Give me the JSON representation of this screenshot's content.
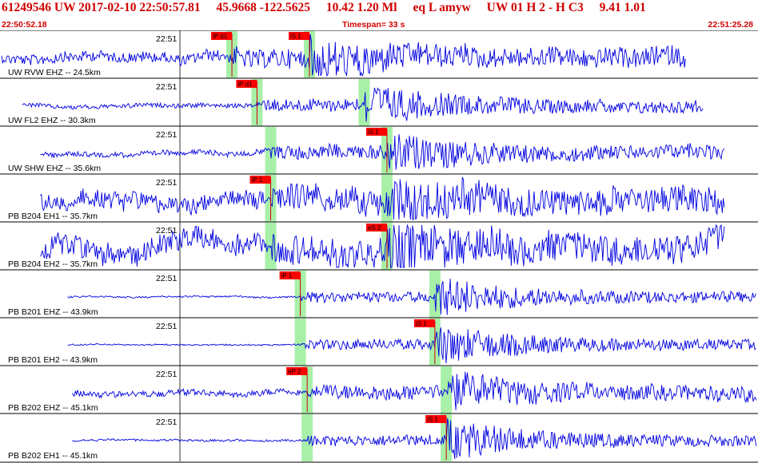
{
  "header": {
    "event_id": "61249546",
    "network": "UW",
    "datetime": "2017-02-10 22:50:57.81",
    "lat": "45.9668",
    "lon": "-122.5625",
    "depth": "10.42",
    "magnitude": "1.20 Ml",
    "event_type": "eq",
    "flags": "L amyw",
    "station_info": "UW 01 H 2 - H C3",
    "value_a": "9.41",
    "value_b": "1.01"
  },
  "timeline": {
    "start_time": "22:50:52.18",
    "timespan": "Timespan=  33 s",
    "end_time": "22:51:25.28"
  },
  "colors": {
    "trace": "#0000e0",
    "pick_flag": "#ff0000",
    "pick_line": "#cc0000",
    "pick_window": "#a8f0a8",
    "header_text": "#d00000"
  },
  "chart_data": {
    "type": "line",
    "x_range_seconds": [
      0,
      33.1
    ],
    "tick_label": "22:51",
    "tick_time_s": 7.82,
    "traces": [
      {
        "label": "UW RVW EHZ -- 24.5km",
        "start_s": 0.0,
        "end_s": 30.0,
        "amp": 0.3,
        "p_time_s": 10.1,
        "s_time_s": 13.5,
        "peak": 1.0,
        "picks": [
          {
            "label": "iP d1",
            "time_s": 10.1
          },
          {
            "label": "iS 1",
            "time_s": 13.5
          }
        ]
      },
      {
        "label": "UW FL2 EHZ -- 30.3km",
        "start_s": 0.9,
        "end_s": 30.8,
        "amp": 0.12,
        "p_time_s": 11.2,
        "s_time_s": 15.9,
        "peak": 0.95,
        "picks": [
          {
            "label": "iP d1",
            "time_s": 11.2
          },
          {
            "label": "",
            "time_s": 15.9
          }
        ]
      },
      {
        "label": "UW SHW EHZ -- 35.6km",
        "start_s": 1.7,
        "end_s": 31.7,
        "amp": 0.15,
        "p_time_s": 11.8,
        "s_time_s": 16.9,
        "peak": 0.95,
        "picks": [
          {
            "label": "",
            "time_s": 11.8
          },
          {
            "label": "iS 1",
            "time_s": 16.9
          }
        ]
      },
      {
        "label": "PB B204 EH1 -- 35.7km",
        "start_s": 1.7,
        "end_s": 31.7,
        "amp": 0.5,
        "p_time_s": 11.8,
        "s_time_s": 16.9,
        "peak": 0.95,
        "picks": [
          {
            "label": "iP 1",
            "time_s": 11.8
          },
          {
            "label": "",
            "time_s": 16.9
          }
        ]
      },
      {
        "label": "PB B204 EH2 -- 35.7km",
        "start_s": 1.7,
        "end_s": 31.7,
        "amp": 0.6,
        "p_time_s": 11.8,
        "s_time_s": 16.9,
        "peak": 0.95,
        "picks": [
          {
            "label": "",
            "time_s": 11.8
          },
          {
            "label": "eS 2",
            "time_s": 16.9
          }
        ]
      },
      {
        "label": "PB B201 EHZ -- 43.9km",
        "start_s": 2.9,
        "end_s": 33.1,
        "amp": 0.05,
        "p_time_s": 13.1,
        "s_time_s": 19.0,
        "peak": 1.0,
        "picks": [
          {
            "label": "iP 1",
            "time_s": 13.1
          },
          {
            "label": "",
            "time_s": 19.0
          }
        ]
      },
      {
        "label": "PB B201 EH2 -- 43.9km",
        "start_s": 2.9,
        "end_s": 33.1,
        "amp": 0.04,
        "p_time_s": 13.1,
        "s_time_s": 19.0,
        "peak": 1.0,
        "picks": [
          {
            "label": "",
            "time_s": 13.1
          },
          {
            "label": "iS 1",
            "time_s": 19.0
          }
        ]
      },
      {
        "label": "PB B202 EHZ -- 45.1km",
        "start_s": 3.1,
        "end_s": 33.1,
        "amp": 0.18,
        "p_time_s": 13.4,
        "s_time_s": 19.5,
        "peak": 0.85,
        "picks": [
          {
            "label": "eP 2",
            "time_s": 13.4
          },
          {
            "label": "",
            "time_s": 19.5
          }
        ]
      },
      {
        "label": "PB B202 EH1 -- 45.1km",
        "start_s": 3.1,
        "end_s": 33.1,
        "amp": 0.06,
        "p_time_s": 13.4,
        "s_time_s": 19.5,
        "peak": 1.0,
        "picks": [
          {
            "label": "",
            "time_s": 13.4
          },
          {
            "label": "iS 1",
            "time_s": 19.5
          }
        ]
      }
    ]
  }
}
